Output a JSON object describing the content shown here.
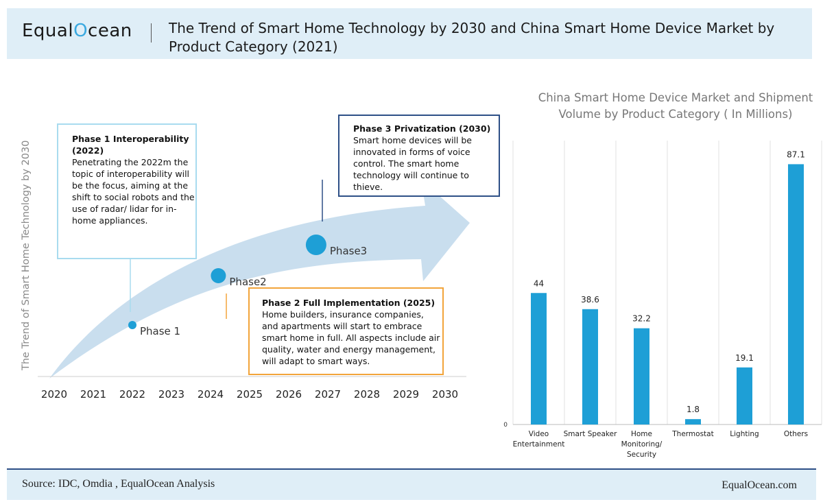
{
  "header": {
    "logo_left": "Equal",
    "logo_right": "cean",
    "title_line1": "The Trend of Smart Home Technology by 2030 and China Smart Home Device Market  by",
    "title_line2": "Product Category (2021)"
  },
  "timeline": {
    "y_title": "The Trend  of Smart Home Technology by 2030",
    "years": [
      "2020",
      "2021",
      "2022",
      "2023",
      "2024",
      "2025",
      "2026",
      "2027",
      "2028",
      "2029",
      "2030"
    ],
    "phases": [
      {
        "label": "Phase 1",
        "year": 2022.0
      },
      {
        "label": "Phase2",
        "year": 2024.2
      },
      {
        "label": "Phase3",
        "year": 2026.7
      }
    ],
    "phase1_box": {
      "title": "Phase 1 Interoperability (2022)",
      "text": "Penetrating the 2022m the topic of interoperability will be the focus, aiming at the shift to social robots and the use of radar/ lidar for in-home appliances."
    },
    "phase2_box": {
      "title": "Phase 2 Full Implementation (2025)",
      "text": "Home builders, insurance companies, and apartments will start to embrace smart home in full. All aspects include air quality, water and energy management, will adapt to smart ways."
    },
    "phase3_box": {
      "title": "Phase 3 Privatization (2030)",
      "text": "Smart home devices will be innovated in forms of voice control. The smart home technology will continue to thieve."
    }
  },
  "chart_data": {
    "type": "bar",
    "title": "China Smart Home Device Market and Shipment Volume by Product Category ( In Millions)",
    "title_line1": "China Smart Home Device Market and Shipment",
    "title_line2": "Volume by Product Category ( In Millions)",
    "categories": [
      [
        "Video",
        "Entertainment"
      ],
      [
        "Smart Speaker"
      ],
      [
        "Home",
        "Monitoring/",
        "Security"
      ],
      [
        "Thermostat"
      ],
      [
        "Lighting"
      ],
      [
        "Others"
      ]
    ],
    "values": [
      44,
      38.6,
      32.2,
      1.8,
      19.1,
      87.1
    ],
    "value_labels": [
      "44",
      "38.6",
      "32.2",
      "1.8",
      "19.1",
      "87.1"
    ],
    "ylim": [
      0,
      95
    ],
    "y_tick_label": "0",
    "bar_color": "#1e9fd6"
  },
  "footer": {
    "source": "Source:  IDC, Omdia , EqualOcean Analysis",
    "site": "EqualOcean.com"
  },
  "colors": {
    "accent": "#3aa9e0",
    "arrow": "#c9deee",
    "dot": "#1e9fd6",
    "phase1_border": "#a8dbef",
    "phase2_border": "#f2a43a",
    "phase3_border": "#2d4f86"
  }
}
